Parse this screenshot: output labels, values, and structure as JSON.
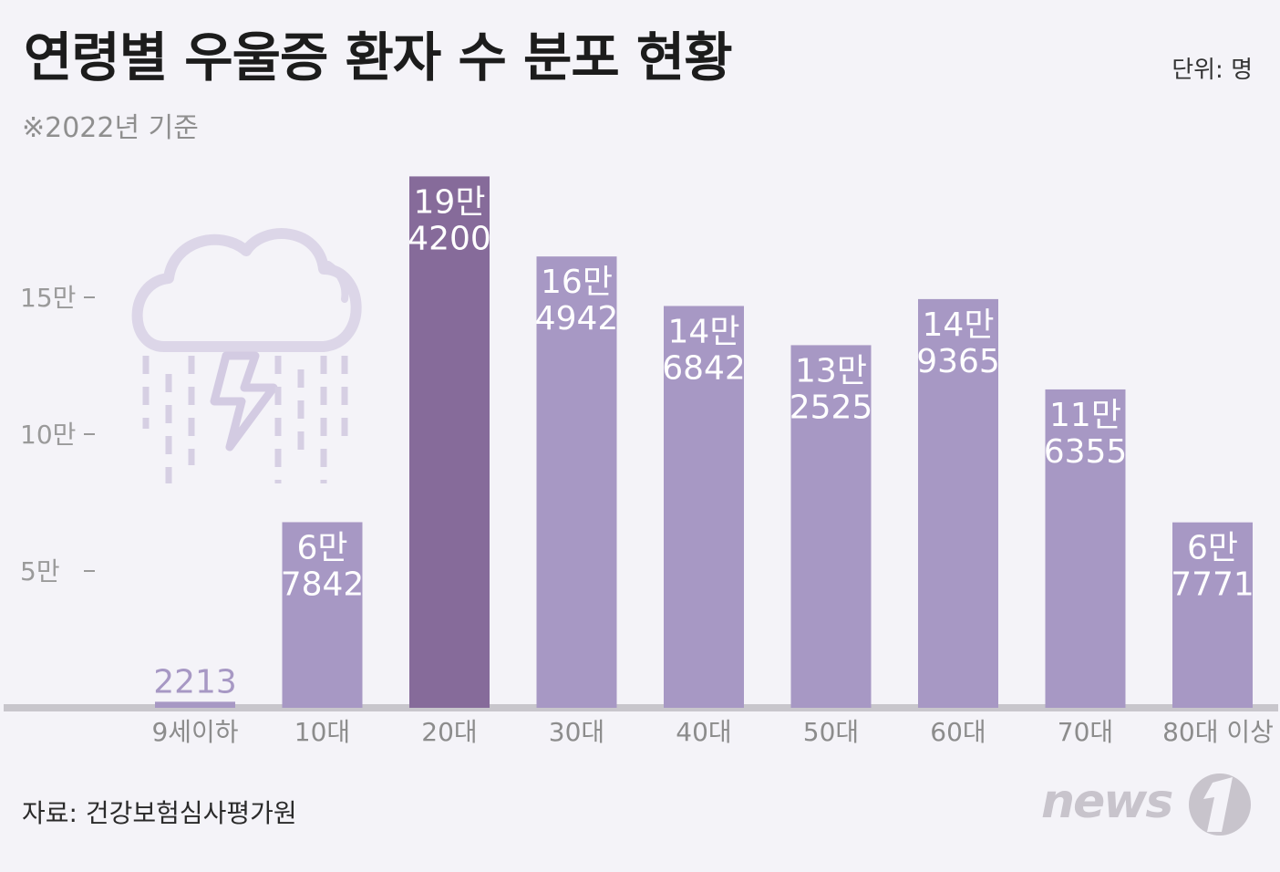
{
  "title": "연령별 우울증 환자 수 분포 현황",
  "subtitle": "※2022년 기준",
  "unit": "단위: 명",
  "source": "자료: 건강보험심사평가원",
  "logo_text": "news 1",
  "icon": "storm-cloud-icon",
  "colors": {
    "bar": "#a798c4",
    "highlight": "#866b9a",
    "label_inside": "#ffffff",
    "label_outside": "#a798c4",
    "baseline": "#c8c6cc",
    "background": "#f4f3f8"
  },
  "chart_data": {
    "type": "bar",
    "categories": [
      "9세이하",
      "10대",
      "20대",
      "30대",
      "40대",
      "50대",
      "60대",
      "70대",
      "80대 이상"
    ],
    "values": [
      2213,
      67842,
      194200,
      164942,
      146842,
      132525,
      149365,
      116355,
      67771
    ],
    "value_labels": [
      [
        "2213"
      ],
      [
        "6만",
        "7842"
      ],
      [
        "19만",
        "4200"
      ],
      [
        "16만",
        "4942"
      ],
      [
        "14만",
        "6842"
      ],
      [
        "13만",
        "2525"
      ],
      [
        "14만",
        "9365"
      ],
      [
        "11만",
        "6355"
      ],
      [
        "6만",
        "7771"
      ]
    ],
    "highlight_index": 2,
    "y_ticks": [
      {
        "value": 50000,
        "label": "5만"
      },
      {
        "value": 100000,
        "label": "10만"
      },
      {
        "value": 150000,
        "label": "15만"
      }
    ],
    "ylim": [
      0,
      200000
    ],
    "title": "연령별 우울증 환자 수 분포 현황",
    "xlabel": "",
    "ylabel": ""
  }
}
